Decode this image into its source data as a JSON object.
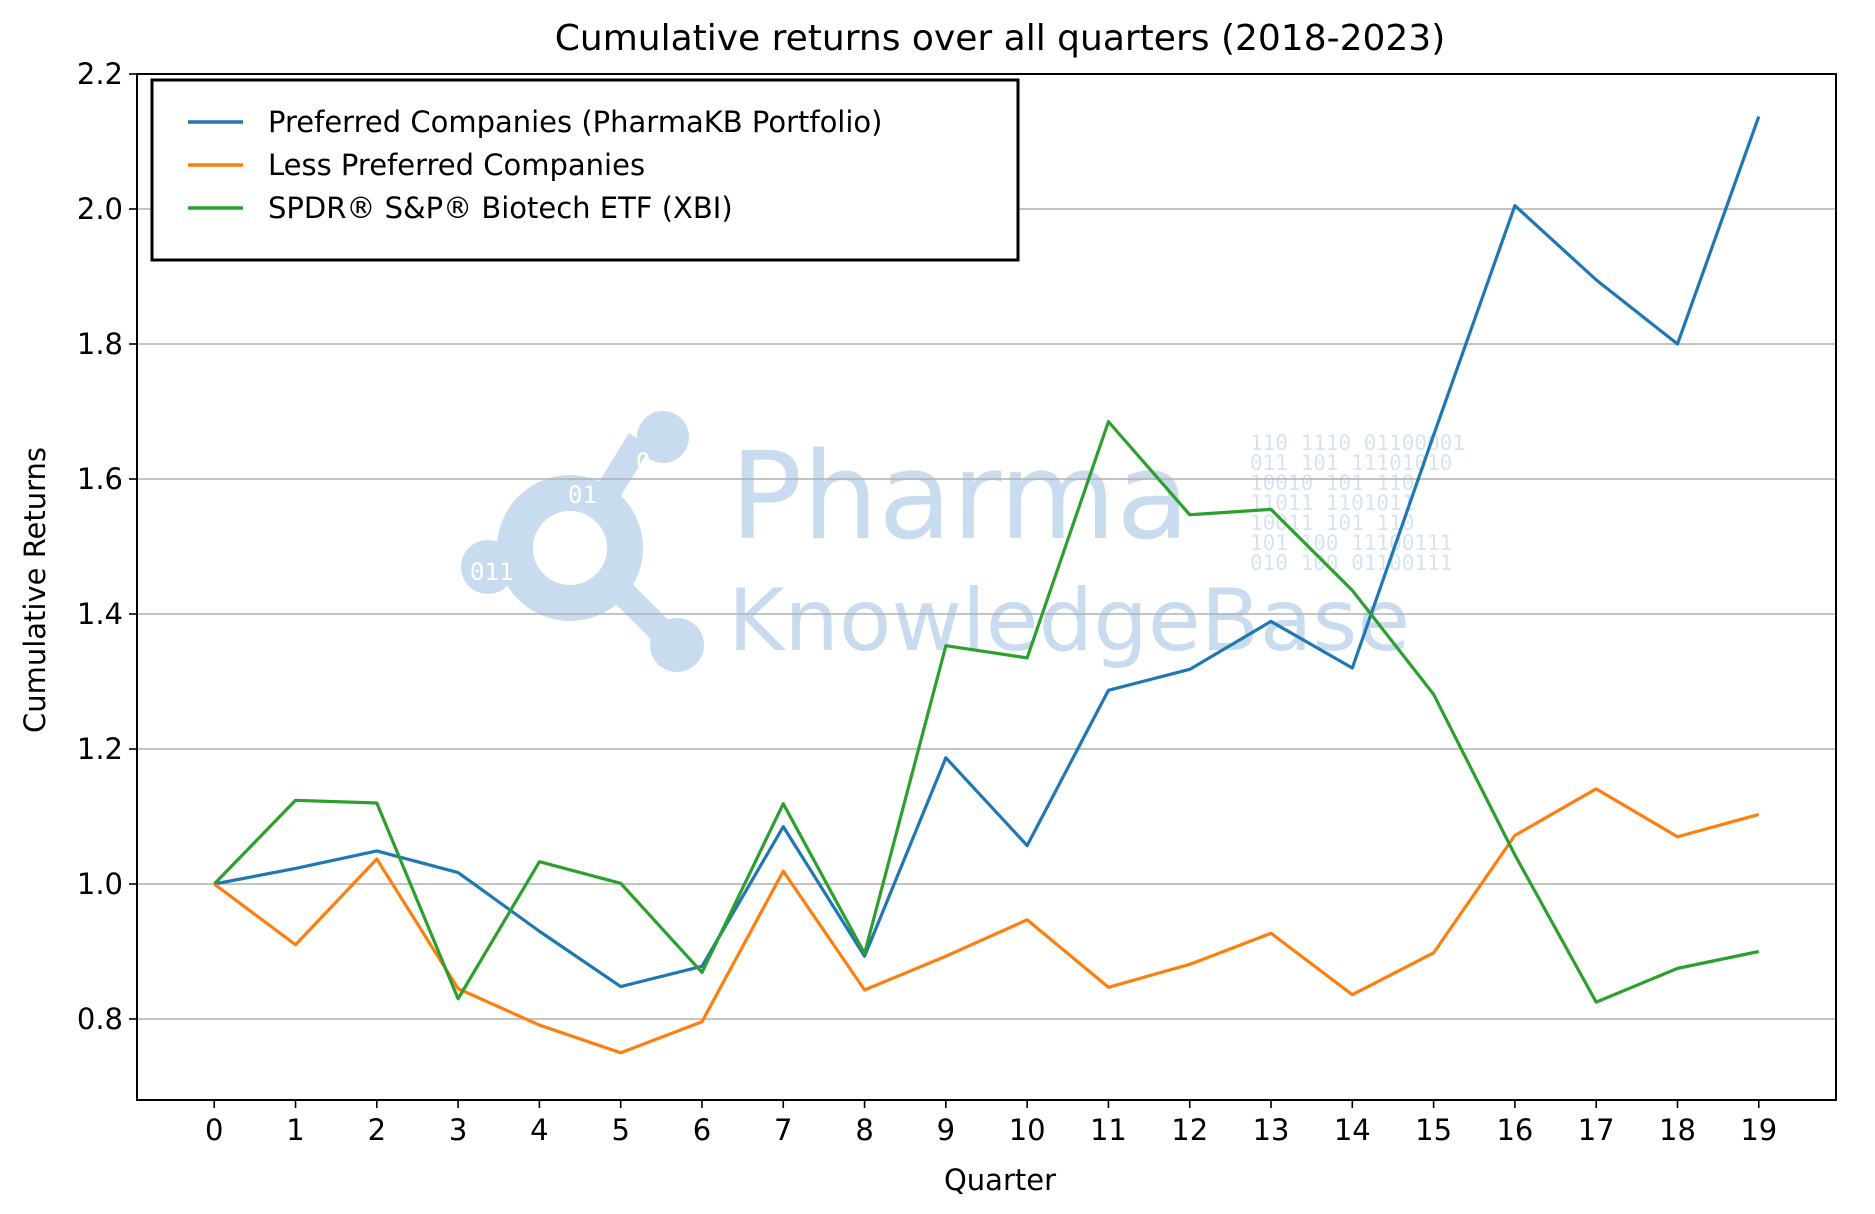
{
  "chart_data": {
    "type": "line",
    "title": "Cumulative returns over all quarters (2018-2023)",
    "xlabel": "Quarter",
    "ylabel": "Cumulative Returns",
    "xlim": [
      -0.95,
      19.95
    ],
    "ylim": [
      0.68,
      2.2
    ],
    "x": [
      0,
      1,
      2,
      3,
      4,
      5,
      6,
      7,
      8,
      9,
      10,
      11,
      12,
      13,
      14,
      15,
      16,
      17,
      18,
      19
    ],
    "y_ticks": [
      0.8,
      1.0,
      1.2,
      1.4,
      1.6,
      1.8,
      2.0,
      2.2
    ],
    "y_tick_labels": [
      "0.8",
      "1.0",
      "1.2",
      "1.4",
      "1.6",
      "1.8",
      "2.0",
      "2.2"
    ],
    "grid": "horizontal",
    "legend_position": "top-left",
    "series": [
      {
        "name": "Preferred Companies (PharmaKB Portfolio)",
        "color": "#1f77b4",
        "values": [
          1.0,
          1.023,
          1.049,
          1.017,
          0.93,
          0.848,
          0.878,
          1.085,
          0.893,
          1.187,
          1.057,
          1.287,
          1.318,
          1.389,
          1.32,
          1.665,
          2.005,
          1.895,
          1.8,
          2.137
        ]
      },
      {
        "name": "Less Preferred Companies",
        "color": "#ff7f0e",
        "values": [
          1.0,
          0.91,
          1.037,
          0.845,
          0.791,
          0.75,
          0.796,
          1.019,
          0.843,
          0.893,
          0.947,
          0.847,
          0.881,
          0.927,
          0.836,
          0.898,
          1.072,
          1.141,
          1.07,
          1.103
        ]
      },
      {
        "name": "SPDR® S&P® Biotech ETF (XBI)",
        "color": "#2ca02c",
        "values": [
          1.0,
          1.124,
          1.12,
          0.83,
          1.033,
          1.001,
          0.869,
          1.119,
          0.897,
          1.353,
          1.335,
          1.685,
          1.547,
          1.555,
          1.435,
          1.281,
          1.043,
          0.825,
          0.875,
          0.9
        ]
      }
    ]
  },
  "watermark": {
    "line1": "Pharma",
    "line2": "KnowledgeBase",
    "color": "#c9dcef",
    "icon": "pharma-knowledgebase-logo-icon"
  }
}
